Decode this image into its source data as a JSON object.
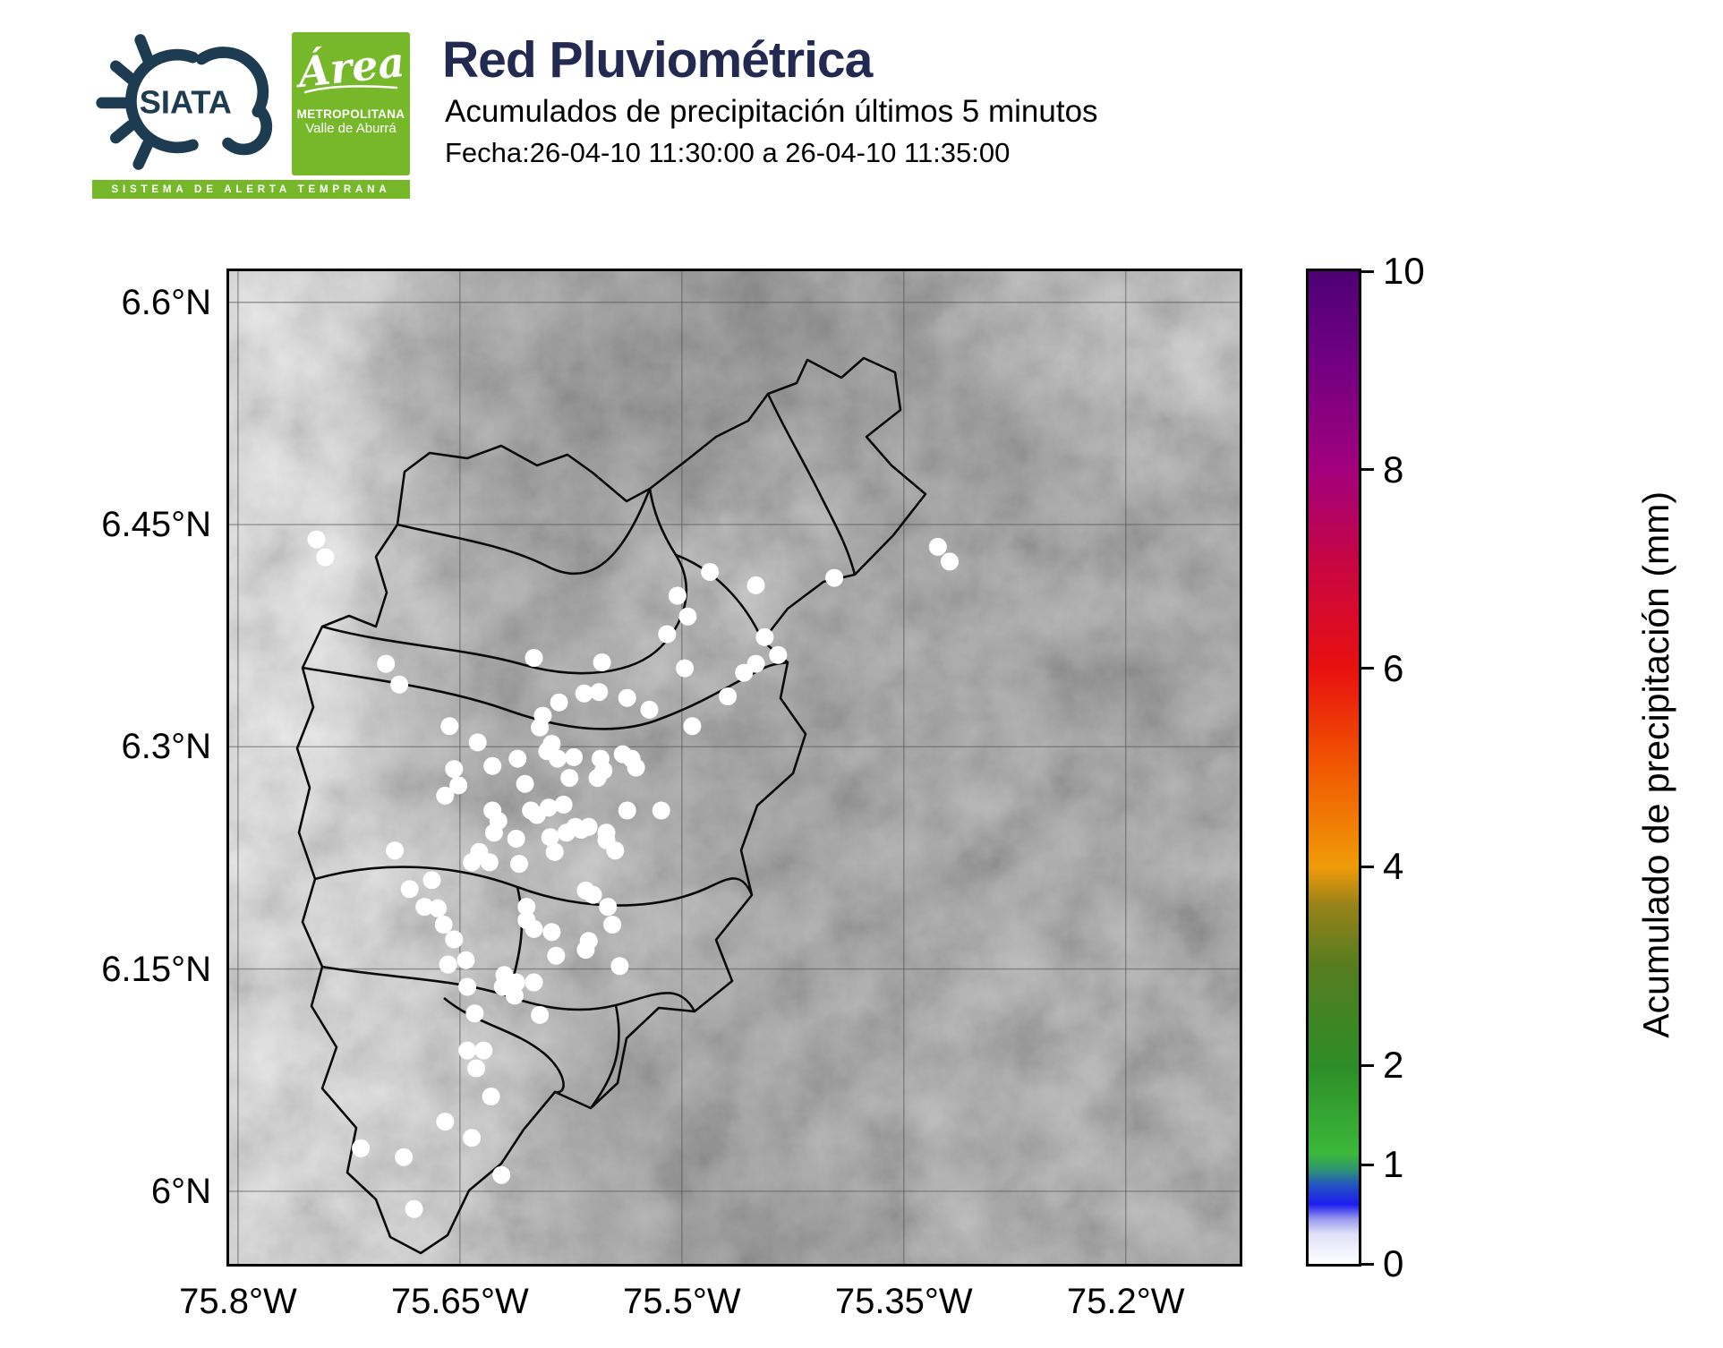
{
  "header": {
    "brand": {
      "siata_label": "SIATA",
      "siata_color": "#1d3c52",
      "banner_text": "SISTEMA DE ALERTA TEMPRANA",
      "green": "#76b82a",
      "area_logo": {
        "script": "Área",
        "line1": "METROPOLITANA",
        "line2": "Valle de Aburrá"
      }
    },
    "title": "Red Pluviométrica",
    "title_color": "#232a52",
    "subtitle": "Acumulados de precipitación últimos 5 minutos",
    "date_line": "Fecha:26-04-10 11:30:00 a 26-04-10 11:35:00"
  },
  "chart_data": {
    "type": "scatter",
    "title": "Red Pluviométrica",
    "subtitle": "Acumulados de precipitación últimos 5 minutos",
    "legend_position": "right-colorbar",
    "grid": true,
    "lon_tick_labels": [
      "75.8°W",
      "75.65°W",
      "75.5°W",
      "75.35°W",
      "75.2°W"
    ],
    "lon_tick_values": [
      -75.8,
      -75.65,
      -75.5,
      -75.35,
      -75.2
    ],
    "lat_tick_labels": [
      "6.6°N",
      "6.45°N",
      "6.3°N",
      "6.15°N",
      "6°N"
    ],
    "lat_tick_values": [
      6.6,
      6.45,
      6.3,
      6.15,
      6.0
    ],
    "lon_range": [
      -75.806,
      -75.123
    ],
    "lat_range": [
      5.951,
      6.621
    ],
    "station_marker": {
      "color": "#ffffff",
      "radius_px": 10,
      "value_mm": 0
    },
    "stations": [
      [
        -75.7,
        6.356
      ],
      [
        -75.691,
        6.342
      ],
      [
        -75.6,
        6.36
      ],
      [
        -75.554,
        6.357
      ],
      [
        -75.657,
        6.314
      ],
      [
        -75.638,
        6.303
      ],
      [
        -75.594,
        6.321
      ],
      [
        -75.596,
        6.313
      ],
      [
        -75.583,
        6.33
      ],
      [
        -75.566,
        6.336
      ],
      [
        -75.556,
        6.337
      ],
      [
        -75.611,
        6.292
      ],
      [
        -75.628,
        6.287
      ],
      [
        -75.654,
        6.285
      ],
      [
        -75.651,
        6.274
      ],
      [
        -75.66,
        6.267
      ],
      [
        -75.606,
        6.275
      ],
      [
        -75.591,
        6.297
      ],
      [
        -75.588,
        6.302
      ],
      [
        -75.584,
        6.292
      ],
      [
        -75.573,
        6.293
      ],
      [
        -75.555,
        6.292
      ],
      [
        -75.553,
        6.284
      ],
      [
        -75.576,
        6.279
      ],
      [
        -75.557,
        6.279
      ],
      [
        -75.628,
        6.257
      ],
      [
        -75.624,
        6.25
      ],
      [
        -75.602,
        6.257
      ],
      [
        -75.598,
        6.254
      ],
      [
        -75.59,
        6.259
      ],
      [
        -75.58,
        6.261
      ],
      [
        -75.572,
        6.246
      ],
      [
        -75.563,
        6.246
      ],
      [
        -75.551,
        6.242
      ],
      [
        -75.481,
        6.418
      ],
      [
        -75.45,
        6.409
      ],
      [
        -75.397,
        6.414
      ],
      [
        -75.503,
        6.402
      ],
      [
        -75.496,
        6.388
      ],
      [
        -75.51,
        6.376
      ],
      [
        -75.444,
        6.374
      ],
      [
        -75.435,
        6.362
      ],
      [
        -75.45,
        6.356
      ],
      [
        -75.458,
        6.35
      ],
      [
        -75.498,
        6.353
      ],
      [
        -75.469,
        6.334
      ],
      [
        -75.537,
        6.333
      ],
      [
        -75.522,
        6.325
      ],
      [
        -75.493,
        6.314
      ],
      [
        -75.531,
        6.286
      ],
      [
        -75.534,
        6.292
      ],
      [
        -75.54,
        6.295
      ],
      [
        -75.514,
        6.257
      ],
      [
        -75.537,
        6.257
      ],
      [
        -75.327,
        6.435
      ],
      [
        -75.319,
        6.425
      ],
      [
        -75.694,
        6.23
      ],
      [
        -75.669,
        6.21
      ],
      [
        -75.684,
        6.204
      ],
      [
        -75.674,
        6.192
      ],
      [
        -75.665,
        6.191
      ],
      [
        -75.661,
        6.18
      ],
      [
        -75.654,
        6.17
      ],
      [
        -75.646,
        6.156
      ],
      [
        -75.658,
        6.153
      ],
      [
        -75.645,
        6.138
      ],
      [
        -75.64,
        6.12
      ],
      [
        -75.645,
        6.095
      ],
      [
        -75.634,
        6.095
      ],
      [
        -75.642,
        6.222
      ],
      [
        -75.63,
        6.222
      ],
      [
        -75.637,
        6.229
      ],
      [
        -75.627,
        6.242
      ],
      [
        -75.612,
        6.238
      ],
      [
        -75.61,
        6.221
      ],
      [
        -75.589,
        6.239
      ],
      [
        -75.586,
        6.229
      ],
      [
        -75.578,
        6.242
      ],
      [
        -75.568,
        6.244
      ],
      [
        -75.551,
        6.237
      ],
      [
        -75.545,
        6.23
      ],
      [
        -75.565,
        6.203
      ],
      [
        -75.56,
        6.2
      ],
      [
        -75.605,
        6.192
      ],
      [
        -75.605,
        6.183
      ],
      [
        -75.6,
        6.177
      ],
      [
        -75.588,
        6.175
      ],
      [
        -75.585,
        6.159
      ],
      [
        -75.6,
        6.141
      ],
      [
        -75.62,
        6.146
      ],
      [
        -75.621,
        6.138
      ],
      [
        -75.613,
        6.132
      ],
      [
        -75.612,
        6.141
      ],
      [
        -75.563,
        6.169
      ],
      [
        -75.565,
        6.163
      ],
      [
        -75.547,
        6.18
      ],
      [
        -75.55,
        6.192
      ],
      [
        -75.596,
        6.119
      ],
      [
        -75.542,
        6.152
      ],
      [
        -75.747,
        6.44
      ],
      [
        -75.741,
        6.428
      ],
      [
        -75.639,
        6.083
      ],
      [
        -75.629,
        6.064
      ],
      [
        -75.66,
        6.047
      ],
      [
        -75.642,
        6.036
      ],
      [
        -75.622,
        6.011
      ],
      [
        -75.681,
        5.988
      ],
      [
        -75.717,
        6.029
      ],
      [
        -75.688,
        6.023
      ]
    ],
    "colorbar": {
      "label": "Acumulado de precipitación (mm)",
      "min": 0,
      "max": 10,
      "ticks": [
        0,
        1,
        2,
        4,
        6,
        8,
        10
      ],
      "gradient_stops": [
        {
          "value": 0,
          "color": "#ffffff"
        },
        {
          "value": 0.3,
          "color": "#e0e0f8"
        },
        {
          "value": 0.45,
          "color": "#9a9aee"
        },
        {
          "value": 0.6,
          "color": "#1c1cee"
        },
        {
          "value": 0.8,
          "color": "#2356c0"
        },
        {
          "value": 0.95,
          "color": "#2f9472"
        },
        {
          "value": 1.1,
          "color": "#3cb83c"
        },
        {
          "value": 1.5,
          "color": "#35a532"
        },
        {
          "value": 2,
          "color": "#2e8c28"
        },
        {
          "value": 3,
          "color": "#567c1f"
        },
        {
          "value": 3.6,
          "color": "#96821a"
        },
        {
          "value": 4,
          "color": "#ef9b08"
        },
        {
          "value": 5,
          "color": "#f15800"
        },
        {
          "value": 6,
          "color": "#e81010"
        },
        {
          "value": 7,
          "color": "#c9063f"
        },
        {
          "value": 8,
          "color": "#a2007d"
        },
        {
          "value": 9,
          "color": "#740080"
        },
        {
          "value": 10,
          "color": "#4e0074"
        }
      ]
    }
  }
}
